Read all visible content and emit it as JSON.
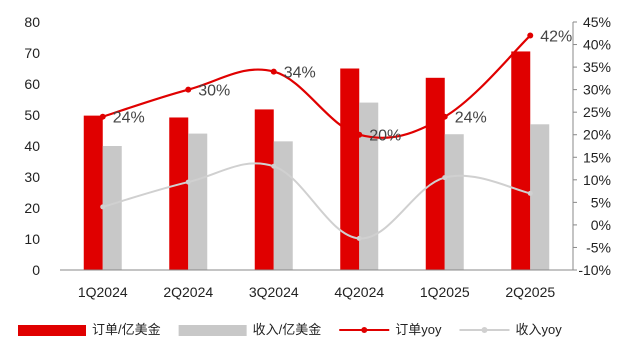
{
  "chart_data": {
    "type": "bar",
    "categories": [
      "1Q2024",
      "2Q2024",
      "3Q2024",
      "4Q2024",
      "1Q2025",
      "2Q2025"
    ],
    "series": [
      {
        "name": "订单/亿美金",
        "type": "bar",
        "axis": "left",
        "color": "#E00000",
        "values": [
          49.8,
          49.2,
          51.8,
          65.0,
          62.0,
          70.5
        ]
      },
      {
        "name": "收入/亿美金",
        "type": "bar",
        "axis": "left",
        "color": "#C8C8C8",
        "values": [
          40.0,
          44.0,
          41.5,
          54.0,
          43.8,
          47.0
        ]
      },
      {
        "name": "订单yoy",
        "type": "line",
        "axis": "right",
        "color": "#E00000",
        "values": [
          24,
          30,
          34,
          20,
          24,
          42
        ]
      },
      {
        "name": "收入yoy",
        "type": "line",
        "axis": "right",
        "color": "#D0D0D0",
        "values": [
          4,
          9.5,
          13,
          -3,
          10.5,
          7
        ]
      }
    ],
    "data_labels": [
      "24%",
      "30%",
      "34%",
      "20%",
      "24%",
      "42%"
    ],
    "y_left": {
      "min": 0,
      "max": 80,
      "ticks": [
        "0",
        "10",
        "20",
        "30",
        "40",
        "50",
        "60",
        "70",
        "80"
      ]
    },
    "y_right": {
      "min": -10,
      "max": 45,
      "ticks": [
        "-10%",
        "-5%",
        "0%",
        "5%",
        "10%",
        "15%",
        "20%",
        "25%",
        "30%",
        "35%",
        "40%",
        "45%"
      ]
    },
    "legend_position": "bottom",
    "grid": false
  }
}
